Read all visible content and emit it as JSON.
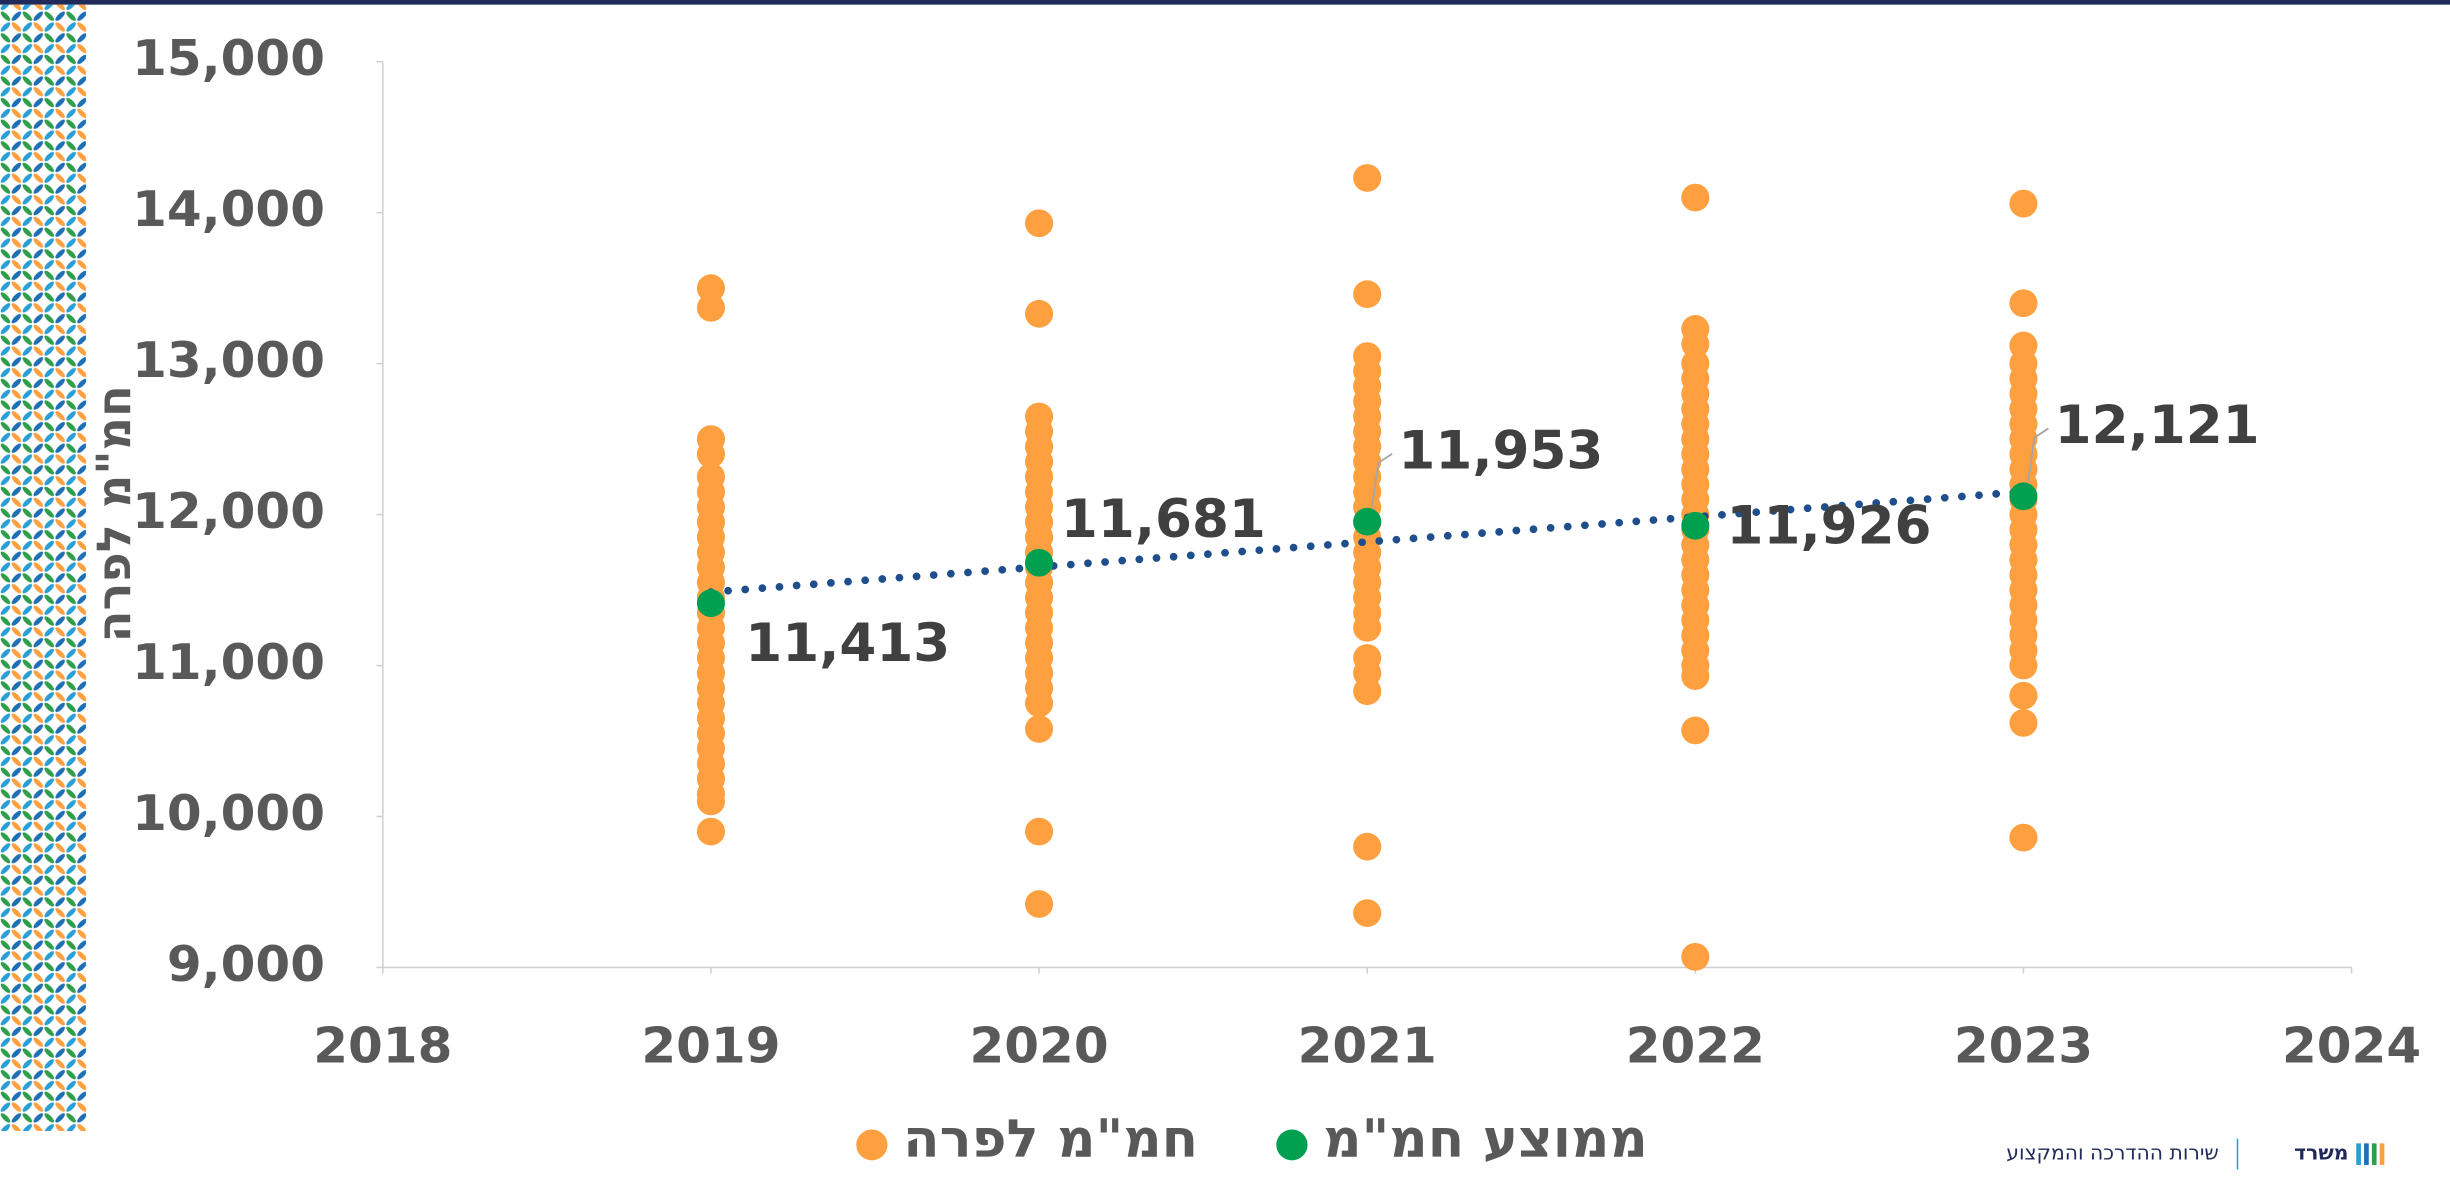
{
  "chart_data": {
    "type": "scatter",
    "y_label": "חמ\"מ לפרה",
    "xlim": [
      2018,
      2024
    ],
    "xticks": [
      2018,
      2019,
      2020,
      2021,
      2022,
      2023,
      2024
    ],
    "ylim": [
      9000,
      15000
    ],
    "yticks": [
      {
        "value": 9000,
        "label": "9,000"
      },
      {
        "value": 10000,
        "label": "10,000"
      },
      {
        "value": 11000,
        "label": "11,000"
      },
      {
        "value": 12000,
        "label": "12,000"
      },
      {
        "value": 13000,
        "label": "13,000"
      },
      {
        "value": 14000,
        "label": "14,000"
      },
      {
        "value": 15000,
        "label": "15,000"
      }
    ],
    "grid": false,
    "legend": "bottom",
    "trendline": {
      "series": 1,
      "color": "#1f4e8c",
      "style": "dotted"
    },
    "series": [
      {
        "name": "חמ\"מ לפרה",
        "color": "#ffa040",
        "x": [
          2019,
          2019,
          2019,
          2019,
          2019,
          2019,
          2019,
          2019,
          2019,
          2019,
          2019,
          2019,
          2019,
          2019,
          2019,
          2019,
          2019,
          2019,
          2019,
          2019,
          2019,
          2019,
          2019,
          2019,
          2019,
          2019,
          2019,
          2019,
          2020,
          2020,
          2020,
          2020,
          2020,
          2020,
          2020,
          2020,
          2020,
          2020,
          2020,
          2020,
          2020,
          2020,
          2020,
          2020,
          2020,
          2020,
          2020,
          2020,
          2020,
          2020,
          2020,
          2020,
          2020,
          2021,
          2021,
          2021,
          2021,
          2021,
          2021,
          2021,
          2021,
          2021,
          2021,
          2021,
          2021,
          2021,
          2021,
          2021,
          2021,
          2021,
          2021,
          2021,
          2021,
          2021,
          2021,
          2021,
          2021,
          2021,
          2021,
          2022,
          2022,
          2022,
          2022,
          2022,
          2022,
          2022,
          2022,
          2022,
          2022,
          2022,
          2022,
          2022,
          2022,
          2022,
          2022,
          2022,
          2022,
          2022,
          2022,
          2022,
          2022,
          2022,
          2022,
          2022,
          2022,
          2022,
          2023,
          2023,
          2023,
          2023,
          2023,
          2023,
          2023,
          2023,
          2023,
          2023,
          2023,
          2023,
          2023,
          2023,
          2023,
          2023,
          2023,
          2023,
          2023,
          2023,
          2023,
          2023,
          2023,
          2023,
          2023,
          2023,
          2023
        ],
        "values": [
          13500,
          13370,
          12500,
          12400,
          12250,
          12150,
          12050,
          11950,
          11850,
          11750,
          11650,
          11550,
          11450,
          11350,
          11250,
          11150,
          11050,
          10950,
          10850,
          10750,
          10650,
          10550,
          10450,
          10350,
          10250,
          10150,
          10100,
          9900,
          13930,
          13330,
          12650,
          12550,
          12450,
          12350,
          12250,
          12150,
          12050,
          11950,
          11850,
          11750,
          11650,
          11550,
          11450,
          11350,
          11250,
          11150,
          11050,
          10950,
          10850,
          10750,
          10580,
          9900,
          9420,
          14230,
          13460,
          13050,
          12950,
          12850,
          12750,
          12650,
          12550,
          12450,
          12350,
          12250,
          12150,
          12050,
          11950,
          11850,
          11750,
          11650,
          11550,
          11450,
          11350,
          11250,
          11050,
          10950,
          10830,
          9800,
          9360,
          14100,
          13230,
          13130,
          13000,
          12900,
          12800,
          12700,
          12600,
          12500,
          12400,
          12300,
          12200,
          12100,
          12000,
          11900,
          11800,
          11700,
          11600,
          11500,
          11400,
          11300,
          11200,
          11100,
          11000,
          10930,
          10570,
          9070,
          14060,
          13400,
          13120,
          13000,
          12900,
          12800,
          12700,
          12600,
          12500,
          12400,
          12300,
          12200,
          12100,
          12000,
          11900,
          11800,
          11700,
          11600,
          11500,
          11400,
          11300,
          11200,
          11100,
          11000,
          10800,
          10620,
          9860
        ]
      },
      {
        "name": "ממוצע חמ\"מ",
        "color": "#00a050",
        "x": [
          2019,
          2020,
          2021,
          2022,
          2023
        ],
        "values": [
          11413,
          11681,
          11953,
          11926,
          12121
        ],
        "value_labels": [
          "11,413",
          "11,681",
          "11,953",
          "11,926",
          "12,121"
        ]
      }
    ]
  },
  "footer": {
    "department": "שירות ההדרכה והמקצוע",
    "logo": "משרד"
  }
}
